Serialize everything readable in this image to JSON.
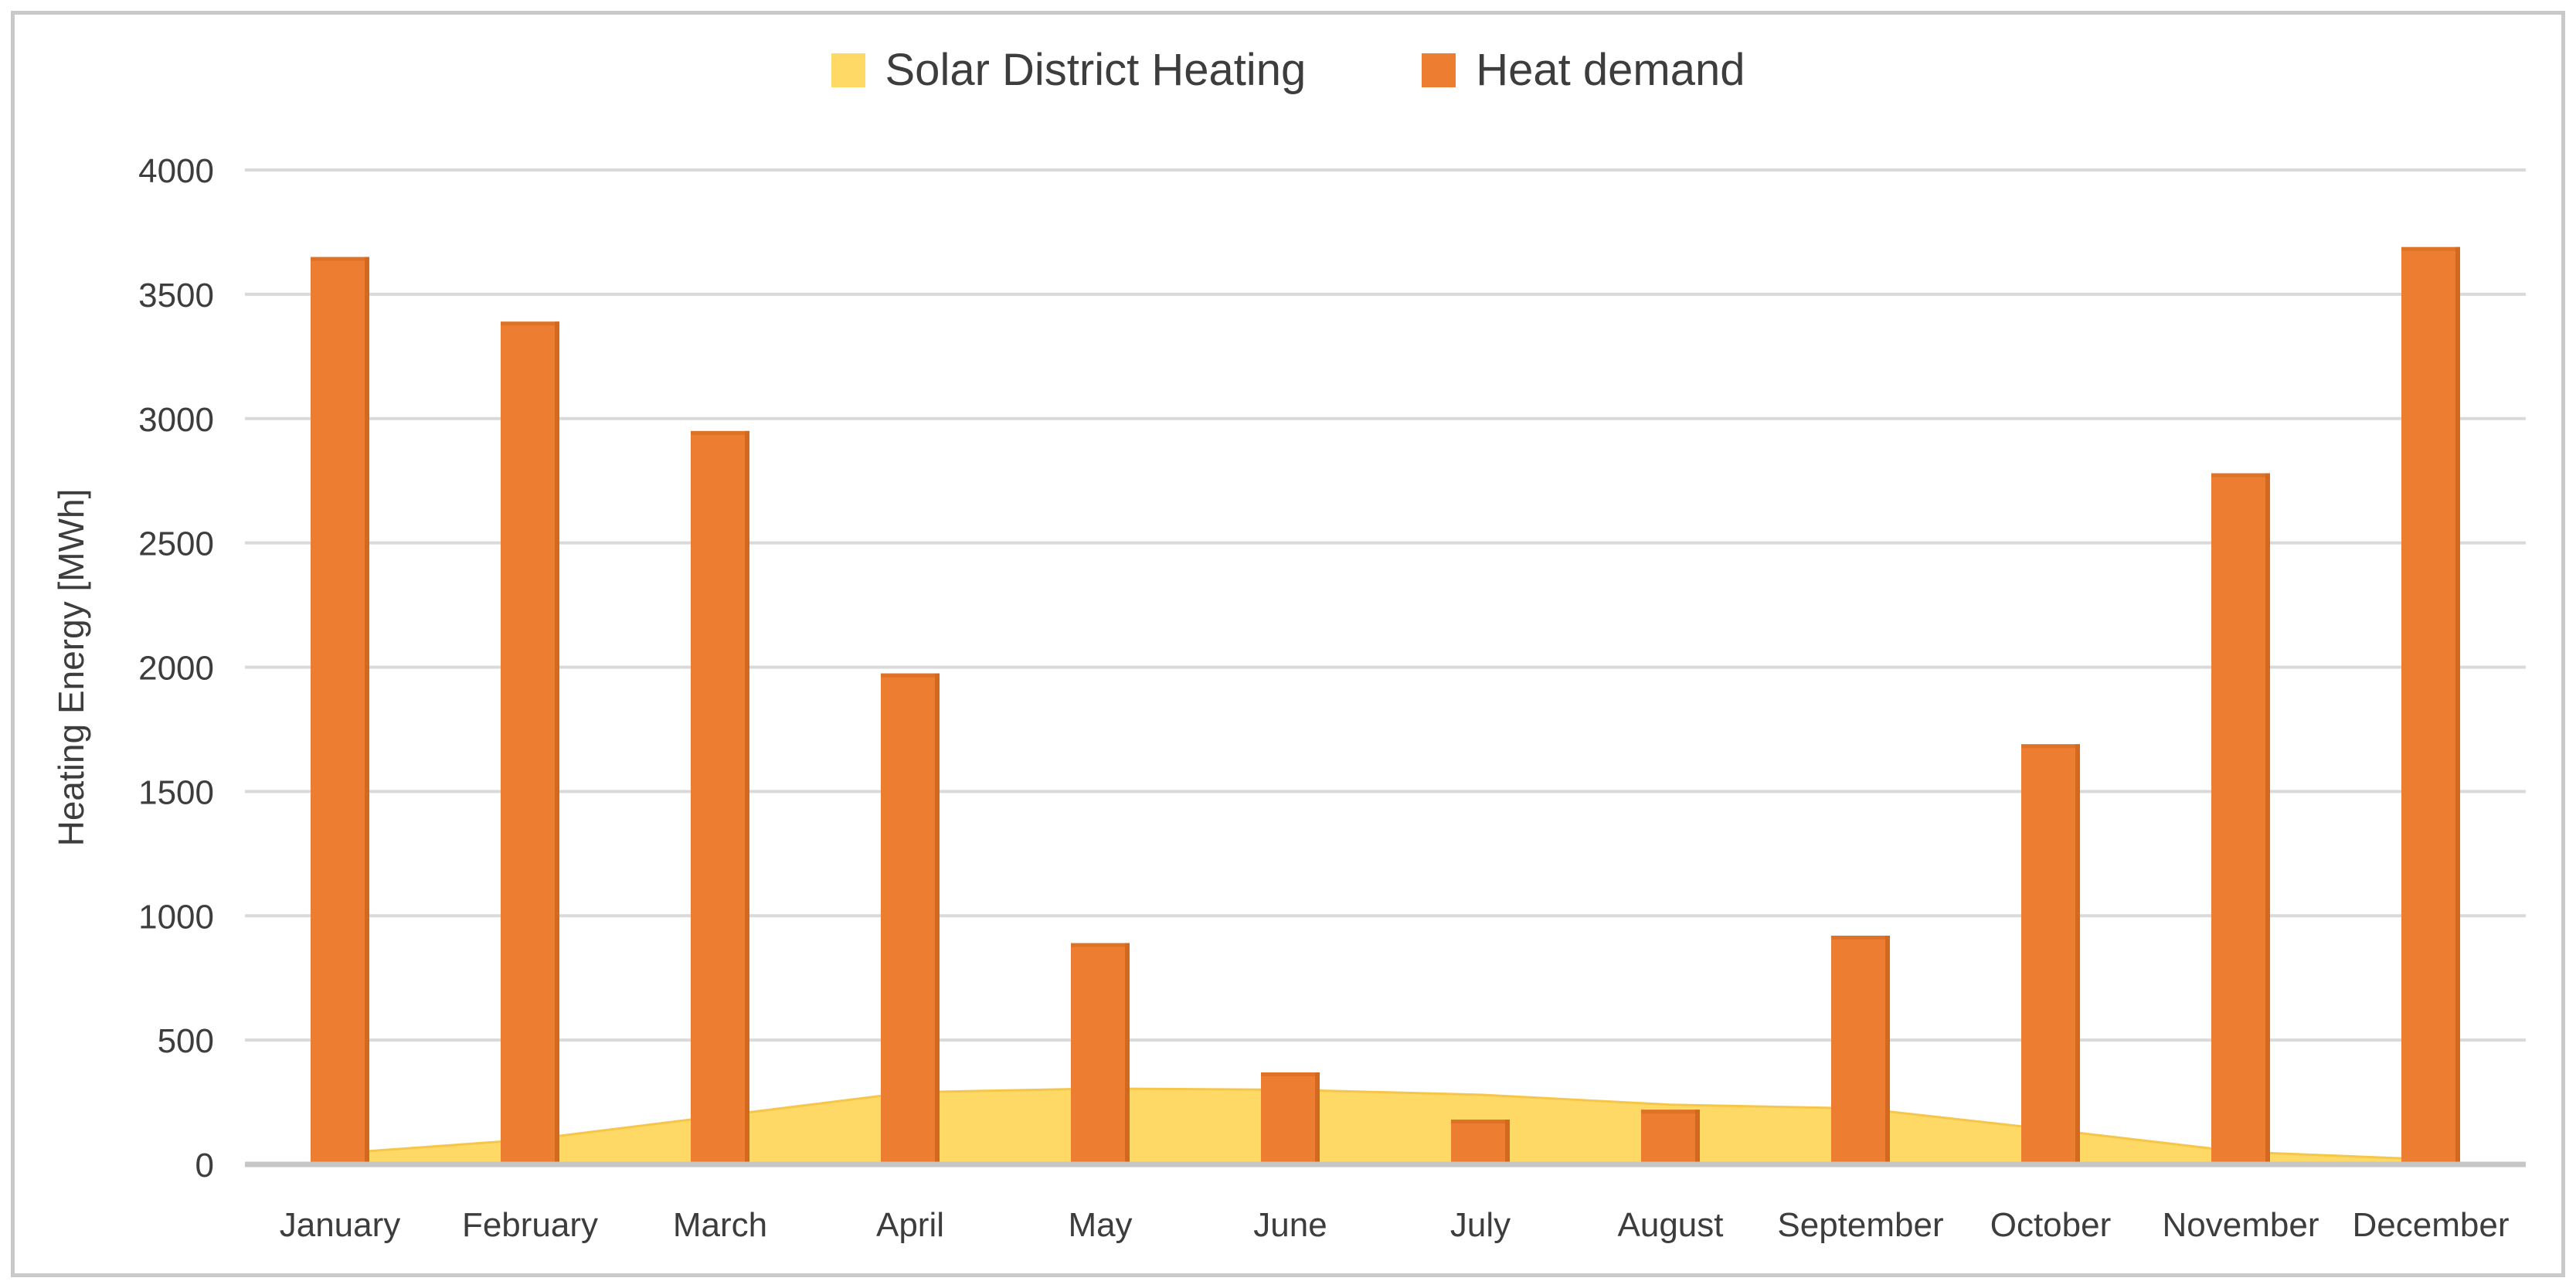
{
  "chart_data": {
    "type": "combo",
    "title": "",
    "categories": [
      "January",
      "February",
      "March",
      "April",
      "May",
      "June",
      "July",
      "August",
      "September",
      "October",
      "November",
      "December"
    ],
    "series": [
      {
        "name": "Solar District Heating",
        "type": "area",
        "color": "#FFD966",
        "edge_color": "#F6C64B",
        "values": [
          45,
          100,
          195,
          290,
          305,
          300,
          280,
          240,
          225,
          140,
          50,
          20
        ]
      },
      {
        "name": "Heat demand",
        "type": "bar",
        "color": "#ED7D31",
        "edge_color": "#D2691E",
        "values": [
          3650,
          3390,
          2950,
          1975,
          890,
          370,
          180,
          220,
          920,
          1690,
          2780,
          3690
        ]
      }
    ],
    "xlabel": "",
    "ylabel": "Heating Energy [MWh]",
    "ylim": [
      0,
      4000
    ],
    "ytick_step": 500,
    "yticks": [
      0,
      500,
      1000,
      1500,
      2000,
      2500,
      3000,
      3500,
      4000
    ],
    "grid": true,
    "gridline_color": "#d9d9d9",
    "axis_line_color": "#c6c6c6",
    "legend_position": "top-center"
  },
  "legend": {
    "items": [
      {
        "label": "Solar District Heating",
        "color": "#FFD966"
      },
      {
        "label": "Heat demand",
        "color": "#ED7D31"
      }
    ]
  },
  "frame": {
    "border_color": "#c9c9c9",
    "background": "#ffffff"
  }
}
